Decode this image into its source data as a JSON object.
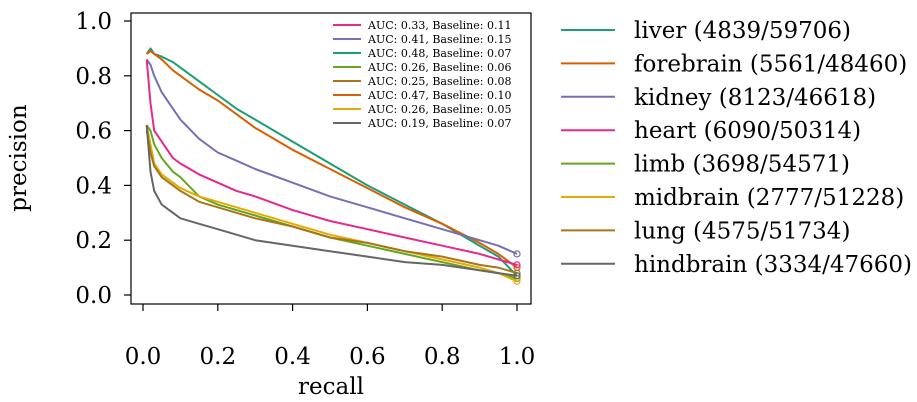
{
  "chart_data": {
    "type": "line",
    "title": "",
    "xlabel": "recall",
    "ylabel": "precision",
    "xlim": [
      0.0,
      1.0
    ],
    "ylim": [
      0.0,
      1.0
    ],
    "x_ticks": [
      "0.0",
      "0.2",
      "0.4",
      "0.6",
      "0.8",
      "1.0"
    ],
    "y_ticks": [
      "0.0",
      "0.2",
      "0.4",
      "0.6",
      "0.8",
      "1.0"
    ],
    "grid": false,
    "legend_position": "right-outside",
    "auc_legend_position": "top-right-inside",
    "auc_entries": [
      {
        "text": "AUC: 0.33, Baseline: 0.11",
        "color": "#e7298a"
      },
      {
        "text": "AUC: 0.41, Baseline: 0.15",
        "color": "#7570b3"
      },
      {
        "text": "AUC: 0.48, Baseline: 0.07",
        "color": "#1b9e77"
      },
      {
        "text": "AUC: 0.26, Baseline: 0.06",
        "color": "#66a61e"
      },
      {
        "text": "AUC: 0.25, Baseline: 0.08",
        "color": "#a6761d"
      },
      {
        "text": "AUC: 0.47, Baseline: 0.10",
        "color": "#d95f02"
      },
      {
        "text": "AUC: 0.26, Baseline: 0.05",
        "color": "#e6ab02"
      },
      {
        "text": "AUC: 0.19, Baseline: 0.07",
        "color": "#666666"
      }
    ],
    "series": [
      {
        "name": "liver (4839/59706)",
        "color": "#1b9e77",
        "x": [
          0.01,
          0.02,
          0.03,
          0.05,
          0.08,
          0.1,
          0.15,
          0.2,
          0.25,
          0.3,
          0.4,
          0.5,
          0.6,
          0.7,
          0.8,
          0.9,
          0.95,
          1.0
        ],
        "y": [
          0.88,
          0.9,
          0.88,
          0.87,
          0.85,
          0.83,
          0.78,
          0.73,
          0.68,
          0.64,
          0.56,
          0.48,
          0.4,
          0.33,
          0.26,
          0.18,
          0.14,
          0.07
        ]
      },
      {
        "name": "forebrain (5561/48460)",
        "color": "#d95f02",
        "x": [
          0.01,
          0.02,
          0.03,
          0.05,
          0.08,
          0.1,
          0.15,
          0.2,
          0.25,
          0.3,
          0.4,
          0.5,
          0.6,
          0.7,
          0.8,
          0.9,
          0.95,
          1.0
        ],
        "y": [
          0.88,
          0.89,
          0.88,
          0.86,
          0.82,
          0.8,
          0.75,
          0.71,
          0.66,
          0.61,
          0.53,
          0.46,
          0.39,
          0.32,
          0.26,
          0.19,
          0.15,
          0.1
        ]
      },
      {
        "name": "kidney (8123/46618)",
        "color": "#7570b3",
        "x": [
          0.01,
          0.02,
          0.03,
          0.05,
          0.08,
          0.1,
          0.15,
          0.2,
          0.25,
          0.3,
          0.4,
          0.5,
          0.6,
          0.7,
          0.8,
          0.9,
          0.95,
          1.0
        ],
        "y": [
          0.86,
          0.84,
          0.8,
          0.74,
          0.68,
          0.64,
          0.57,
          0.52,
          0.49,
          0.46,
          0.41,
          0.36,
          0.32,
          0.28,
          0.24,
          0.2,
          0.18,
          0.15
        ]
      },
      {
        "name": "heart (6090/50314)",
        "color": "#e7298a",
        "x": [
          0.01,
          0.02,
          0.03,
          0.05,
          0.08,
          0.1,
          0.15,
          0.2,
          0.25,
          0.3,
          0.4,
          0.5,
          0.6,
          0.7,
          0.8,
          0.9,
          0.95,
          1.0
        ],
        "y": [
          0.86,
          0.7,
          0.6,
          0.56,
          0.5,
          0.48,
          0.44,
          0.41,
          0.38,
          0.36,
          0.31,
          0.27,
          0.24,
          0.21,
          0.18,
          0.15,
          0.13,
          0.11
        ]
      },
      {
        "name": "limb (3698/54571)",
        "color": "#66a61e",
        "x": [
          0.01,
          0.02,
          0.03,
          0.05,
          0.08,
          0.1,
          0.15,
          0.2,
          0.25,
          0.3,
          0.4,
          0.5,
          0.6,
          0.7,
          0.8,
          0.9,
          0.95,
          1.0
        ],
        "y": [
          0.62,
          0.6,
          0.55,
          0.5,
          0.45,
          0.43,
          0.36,
          0.33,
          0.31,
          0.29,
          0.25,
          0.21,
          0.18,
          0.15,
          0.12,
          0.09,
          0.08,
          0.06
        ]
      },
      {
        "name": "midbrain (2777/51228)",
        "color": "#e6ab02",
        "x": [
          0.01,
          0.02,
          0.03,
          0.05,
          0.08,
          0.1,
          0.15,
          0.2,
          0.25,
          0.3,
          0.4,
          0.5,
          0.6,
          0.7,
          0.8,
          0.9,
          0.95,
          1.0
        ],
        "y": [
          0.62,
          0.55,
          0.48,
          0.44,
          0.41,
          0.39,
          0.36,
          0.34,
          0.32,
          0.3,
          0.26,
          0.22,
          0.19,
          0.16,
          0.13,
          0.1,
          0.08,
          0.05
        ]
      },
      {
        "name": "lung (4575/51734)",
        "color": "#a6761d",
        "x": [
          0.01,
          0.02,
          0.03,
          0.05,
          0.08,
          0.1,
          0.15,
          0.2,
          0.25,
          0.3,
          0.4,
          0.5,
          0.6,
          0.7,
          0.8,
          0.9,
          0.95,
          1.0
        ],
        "y": [
          0.6,
          0.52,
          0.47,
          0.43,
          0.4,
          0.38,
          0.34,
          0.32,
          0.3,
          0.28,
          0.25,
          0.21,
          0.19,
          0.16,
          0.14,
          0.11,
          0.1,
          0.08
        ]
      },
      {
        "name": "hindbrain (3334/47660)",
        "color": "#666666",
        "x": [
          0.01,
          0.02,
          0.03,
          0.05,
          0.08,
          0.1,
          0.15,
          0.2,
          0.25,
          0.3,
          0.4,
          0.5,
          0.6,
          0.7,
          0.8,
          0.9,
          0.95,
          1.0
        ],
        "y": [
          0.62,
          0.45,
          0.38,
          0.33,
          0.3,
          0.28,
          0.26,
          0.24,
          0.22,
          0.2,
          0.18,
          0.16,
          0.14,
          0.12,
          0.11,
          0.09,
          0.08,
          0.07
        ]
      }
    ]
  }
}
